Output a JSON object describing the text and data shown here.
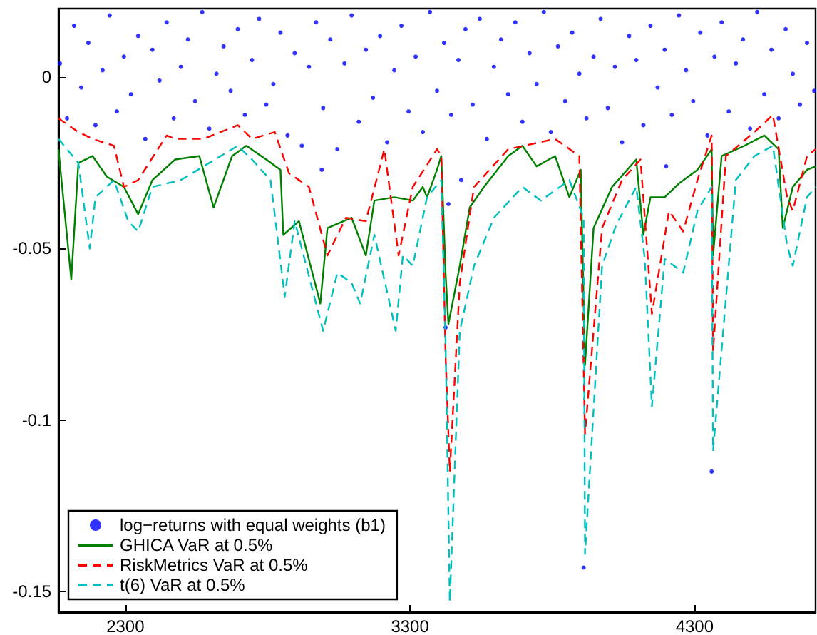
{
  "chart_data": {
    "type": "line",
    "xlim": [
      2065,
      4725
    ],
    "ylim": [
      -0.156,
      0.02
    ],
    "xticks": [
      2300,
      3300,
      4300
    ],
    "yticks": [
      -0.15,
      -0.1,
      -0.05,
      0
    ],
    "grid": false,
    "legend": "bottom left",
    "series": [
      {
        "name": "log−returns with equal weights (b1)",
        "type": "scatter",
        "marker": "circle",
        "color": "#0000ff",
        "x": [
          2070,
          2095,
          2120,
          2145,
          2170,
          2195,
          2220,
          2245,
          2270,
          2295,
          2320,
          2345,
          2370,
          2395,
          2420,
          2445,
          2470,
          2495,
          2520,
          2545,
          2570,
          2595,
          2620,
          2645,
          2670,
          2695,
          2720,
          2745,
          2770,
          2795,
          2820,
          2845,
          2870,
          2895,
          2920,
          2945,
          2970,
          2990,
          2995,
          3020,
          3045,
          3070,
          3095,
          3120,
          3145,
          3170,
          3195,
          3220,
          3245,
          3270,
          3295,
          3320,
          3345,
          3370,
          3395,
          3420,
          3425,
          3435,
          3445,
          3470,
          3480,
          3495,
          3520,
          3545,
          3570,
          3595,
          3620,
          3645,
          3670,
          3695,
          3720,
          3745,
          3770,
          3795,
          3820,
          3845,
          3870,
          3895,
          3910,
          3920,
          3945,
          3970,
          3995,
          4020,
          4045,
          4070,
          4095,
          4120,
          4145,
          4170,
          4195,
          4200,
          4220,
          4245,
          4270,
          4295,
          4320,
          4345,
          4360,
          4370,
          4395,
          4420,
          4445,
          4470,
          4495,
          4520,
          4545,
          4570,
          4595,
          4620,
          4645,
          4670,
          4695,
          4720
        ],
        "values": [
          0.004,
          -0.012,
          0.015,
          -0.003,
          0.01,
          -0.014,
          0.002,
          0.018,
          -0.01,
          0.006,
          -0.005,
          0.012,
          -0.018,
          0.008,
          -0.001,
          0.016,
          -0.012,
          0.003,
          0.011,
          -0.007,
          0.019,
          -0.015,
          0.001,
          0.009,
          -0.004,
          0.014,
          -0.011,
          0.005,
          0.017,
          -0.008,
          -0.002,
          0.013,
          -0.017,
          0.007,
          -0.02,
          0.003,
          0.016,
          -0.027,
          -0.009,
          0.011,
          -0.021,
          0.004,
          0.018,
          -0.013,
          0.008,
          -0.006,
          0.012,
          -0.019,
          0.002,
          0.015,
          -0.01,
          0.006,
          -0.016,
          0.019,
          -0.004,
          0.01,
          -0.073,
          -0.037,
          -0.011,
          0.005,
          -0.03,
          0.014,
          -0.008,
          0.017,
          -0.018,
          0.003,
          0.011,
          -0.005,
          0.016,
          -0.013,
          0.007,
          -0.002,
          0.019,
          -0.016,
          0.009,
          -0.007,
          0.013,
          0.001,
          -0.143,
          -0.012,
          0.006,
          0.017,
          -0.009,
          0.003,
          -0.019,
          0.012,
          0.005,
          -0.014,
          0.015,
          -0.003,
          0.008,
          -0.026,
          -0.011,
          0.018,
          0.002,
          -0.007,
          0.013,
          -0.017,
          -0.115,
          0.006,
          0.016,
          -0.01,
          0.004,
          0.011,
          -0.015,
          0.019,
          -0.005,
          0.008,
          -0.012,
          0.014,
          0.001,
          -0.008,
          0.01,
          -0.004
        ]
      },
      {
        "name": "GHICA VaR at 0.5%",
        "line_style": "solid",
        "color": "#008000",
        "x": [
          2065,
          2110,
          2135,
          2185,
          2235,
          2295,
          2345,
          2395,
          2475,
          2560,
          2610,
          2675,
          2725,
          2795,
          2845,
          2855,
          2910,
          2985,
          3010,
          3095,
          3145,
          3175,
          3245,
          3310,
          3345,
          3360,
          3395,
          3410,
          3425,
          3435,
          3475,
          3510,
          3560,
          3645,
          3695,
          3745,
          3810,
          3860,
          3900,
          3915,
          3945,
          4010,
          4095,
          4120,
          4145,
          4195,
          4245,
          4310,
          4360,
          4365,
          4395,
          4475,
          4545,
          4595,
          4610,
          4645,
          4695,
          4725
        ],
        "values": [
          -0.021,
          -0.059,
          -0.025,
          -0.023,
          -0.029,
          -0.032,
          -0.04,
          -0.03,
          -0.024,
          -0.023,
          -0.038,
          -0.023,
          -0.02,
          -0.024,
          -0.027,
          -0.046,
          -0.042,
          -0.066,
          -0.044,
          -0.041,
          -0.052,
          -0.036,
          -0.035,
          -0.036,
          -0.032,
          -0.035,
          -0.027,
          -0.023,
          -0.057,
          -0.072,
          -0.055,
          -0.038,
          -0.032,
          -0.023,
          -0.02,
          -0.026,
          -0.023,
          -0.035,
          -0.027,
          -0.084,
          -0.044,
          -0.032,
          -0.024,
          -0.046,
          -0.035,
          -0.035,
          -0.031,
          -0.027,
          -0.021,
          -0.052,
          -0.023,
          -0.02,
          -0.017,
          -0.021,
          -0.044,
          -0.032,
          -0.027,
          -0.026
        ]
      },
      {
        "name": "RiskMetrics VaR at 0.5%",
        "line_style": "dashed",
        "color": "#ff0000",
        "x": [
          2065,
          2135,
          2185,
          2260,
          2295,
          2345,
          2445,
          2475,
          2575,
          2695,
          2745,
          2825,
          2875,
          2945,
          3010,
          3075,
          3145,
          3210,
          3260,
          3310,
          3395,
          3410,
          3425,
          3440,
          3475,
          3525,
          3645,
          3810,
          3895,
          3915,
          3975,
          4045,
          4110,
          4150,
          4210,
          4260,
          4310,
          4360,
          4365,
          4410,
          4510,
          4575,
          4625,
          4645,
          4695,
          4725
        ],
        "values": [
          -0.012,
          -0.016,
          -0.018,
          -0.02,
          -0.032,
          -0.03,
          -0.017,
          -0.018,
          -0.018,
          -0.014,
          -0.018,
          -0.016,
          -0.028,
          -0.032,
          -0.052,
          -0.041,
          -0.042,
          -0.021,
          -0.052,
          -0.032,
          -0.021,
          -0.023,
          -0.081,
          -0.115,
          -0.06,
          -0.032,
          -0.021,
          -0.018,
          -0.023,
          -0.104,
          -0.044,
          -0.03,
          -0.024,
          -0.069,
          -0.039,
          -0.045,
          -0.03,
          -0.017,
          -0.08,
          -0.023,
          -0.016,
          -0.011,
          -0.035,
          -0.039,
          -0.023,
          -0.021
        ]
      },
      {
        "name": "t(6) VaR at 0.5%",
        "line_style": "dashed",
        "color": "#00bfbf",
        "x": [
          2065,
          2135,
          2175,
          2195,
          2260,
          2310,
          2345,
          2395,
          2495,
          2575,
          2695,
          2745,
          2810,
          2860,
          2895,
          2995,
          3045,
          3095,
          3125,
          3175,
          3250,
          3275,
          3310,
          3360,
          3410,
          3425,
          3440,
          3475,
          3525,
          3595,
          3695,
          3760,
          3860,
          3910,
          3915,
          3975,
          4025,
          4095,
          4125,
          4150,
          4195,
          4260,
          4310,
          4360,
          4365,
          4445,
          4510,
          4575,
          4625,
          4645,
          4695,
          4725
        ],
        "values": [
          -0.018,
          -0.025,
          -0.05,
          -0.035,
          -0.03,
          -0.042,
          -0.045,
          -0.032,
          -0.03,
          -0.026,
          -0.02,
          -0.024,
          -0.03,
          -0.064,
          -0.042,
          -0.074,
          -0.057,
          -0.06,
          -0.066,
          -0.046,
          -0.074,
          -0.052,
          -0.055,
          -0.035,
          -0.03,
          -0.077,
          -0.153,
          -0.074,
          -0.055,
          -0.041,
          -0.032,
          -0.036,
          -0.03,
          -0.041,
          -0.139,
          -0.055,
          -0.043,
          -0.032,
          -0.053,
          -0.096,
          -0.053,
          -0.057,
          -0.039,
          -0.032,
          -0.109,
          -0.03,
          -0.023,
          -0.02,
          -0.049,
          -0.055,
          -0.035,
          -0.032
        ]
      }
    ]
  }
}
